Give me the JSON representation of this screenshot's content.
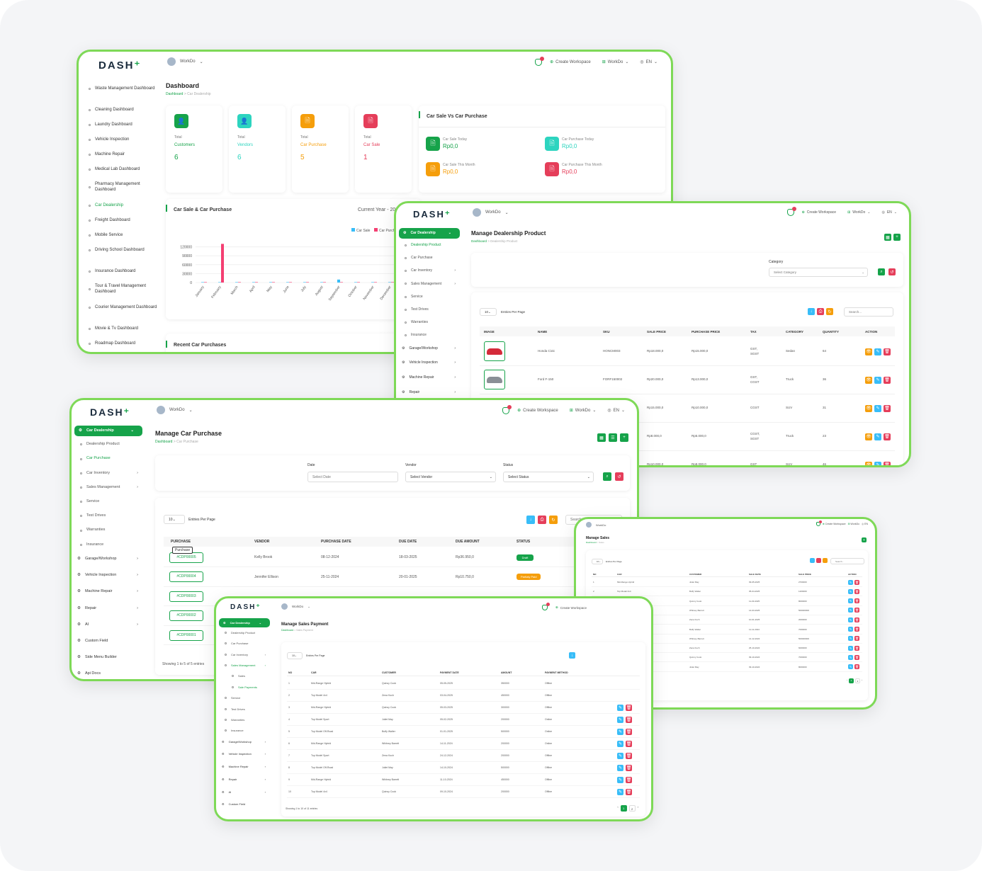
{
  "brand": "DASH",
  "topbar": {
    "workspace": "WorkDo",
    "create_workspace": "Create Workspace",
    "lang": "EN"
  },
  "w1": {
    "sidebar": [
      "Waste Management Dashboard",
      "Cleaning Dashboard",
      "Laundry Dashboard",
      "Vehicle Inspection",
      "Machine Repair",
      "Medical Lab Dashboard",
      "Pharmacy Management Dashboard",
      "Car Dealership",
      "Freight Dashboard",
      "Mobile Service",
      "Driving School Dashboard",
      "Insurance Dashboard",
      "Tour & Travel Management Dashboard",
      "Courier Management Dashboard",
      "Movie & Tv Dashboard",
      "Roadmap Dashboard"
    ],
    "title": "Dashboard",
    "crumb_home": "Dashboard",
    "crumb_current": "Car Dealership",
    "stats": [
      {
        "label": "Total",
        "name": "Customers",
        "value": "6",
        "color": "#16a34a"
      },
      {
        "label": "Total",
        "name": "Vendors",
        "value": "6",
        "color": "#2dd4bf"
      },
      {
        "label": "Total",
        "name": "Car Purchase",
        "value": "5",
        "color": "#f59e0b"
      },
      {
        "label": "Total",
        "name": "Car Sale",
        "value": "1",
        "color": "#e53e5a"
      }
    ],
    "sale_vs_purchase": {
      "title": "Car Sale Vs Car Purchase",
      "items": [
        {
          "label": "Car Sale Today",
          "value": "Rp0,0",
          "color": "#16a34a"
        },
        {
          "label": "Car Purchase Today",
          "value": "Rp0,0",
          "color": "#2dd4bf"
        },
        {
          "label": "Car Sale This Month",
          "value": "Rp0,0",
          "color": "#f59e0b"
        },
        {
          "label": "Car Purchase This Month",
          "value": "Rp0,0",
          "color": "#e53e5a"
        }
      ]
    },
    "chart_title": "Car Sale & Car Purchase",
    "chart_period": "Current Year - 20",
    "recent_title": "Recent Car Purchases"
  },
  "chart_data": {
    "type": "bar",
    "categories": [
      "January",
      "February",
      "March",
      "April",
      "May",
      "June",
      "July",
      "August",
      "September",
      "October",
      "November",
      "December"
    ],
    "series": [
      {
        "name": "Car Sale",
        "values": [
          0,
          0,
          0,
          0,
          0,
          0,
          0,
          0,
          10000,
          0,
          0,
          0
        ],
        "color": "#38bdf8"
      },
      {
        "name": "Car Purchase",
        "values": [
          0,
          130000,
          0,
          0,
          0,
          0,
          0,
          0,
          0,
          0,
          0,
          0
        ],
        "color": "#f43f72"
      }
    ],
    "yticks": [
      "0",
      "30000",
      "60000",
      "90000",
      "120000"
    ],
    "ylim": [
      0,
      150000
    ],
    "legend": "top-right"
  },
  "w2": {
    "sidebar": [
      {
        "label": "Car Dealership",
        "type": "active"
      },
      {
        "label": "Dealership Product",
        "type": "green"
      },
      {
        "label": "Car Purchase",
        "type": "sub"
      },
      {
        "label": "Car Inventory",
        "type": "sub"
      },
      {
        "label": "Sales Management",
        "type": "sub"
      },
      {
        "label": "Service",
        "type": "sub"
      },
      {
        "label": "Test Drives",
        "type": "sub"
      },
      {
        "label": "Warranties",
        "type": "sub"
      },
      {
        "label": "Insurance",
        "type": "sub"
      },
      {
        "label": "Garage/Workshop",
        "type": "main"
      },
      {
        "label": "Vehicle Inspection",
        "type": "main"
      },
      {
        "label": "Machine Repair",
        "type": "main"
      },
      {
        "label": "Repair",
        "type": "main"
      }
    ],
    "title": "Manage Dealership Product",
    "crumb_home": "Dashboard",
    "crumb_current": "Dealership Product",
    "category_label": "Category",
    "category_placeholder": "Select Category",
    "entries": "10",
    "entries_label": "Entries Per Page",
    "search_placeholder": "Search...",
    "headers": [
      "IMAGE",
      "NAME",
      "SKU",
      "SALE PRICE",
      "PURCHASE PRICE",
      "TAX",
      "CATEGORY",
      "QUANTITY",
      "ACTION"
    ],
    "rows": [
      {
        "name": "Honda Civic",
        "sku": "HONCM003",
        "sale": "Rp18.000,0",
        "purchase": "Rp15.000,0",
        "tax": "GST, SGST",
        "category": "Sedan",
        "qty": "64"
      },
      {
        "name": "Ford F-150",
        "sku": "FORF150002",
        "sale": "Rp20.000,0",
        "purchase": "Rp13.000,0",
        "tax": "GST, CGST",
        "category": "Truck",
        "qty": "36"
      },
      {
        "name": "",
        "sku": "",
        "sale": "Rp15.000,0",
        "purchase": "Rp10.000,0",
        "tax": "CGST",
        "category": "SUV",
        "qty": "31"
      },
      {
        "name": "",
        "sku": "",
        "sale": "Rp8.000,0",
        "purchase": "Rp5.000,0",
        "tax": "CGST, SGST",
        "category": "Truck",
        "qty": "23"
      },
      {
        "name": "",
        "sku": "",
        "sale": "Rp10.000,0",
        "purchase": "Rp8.000,0",
        "tax": "GST",
        "category": "SUV",
        "qty": "46"
      }
    ]
  },
  "w3": {
    "sidebar": [
      {
        "label": "Car Dealership",
        "type": "active"
      },
      {
        "label": "Dealership Product",
        "type": "sub"
      },
      {
        "label": "Car Purchase",
        "type": "green"
      },
      {
        "label": "Car Inventory",
        "type": "sub"
      },
      {
        "label": "Sales Management",
        "type": "sub"
      },
      {
        "label": "Service",
        "type": "sub"
      },
      {
        "label": "Test Drives",
        "type": "sub"
      },
      {
        "label": "Warranties",
        "type": "sub"
      },
      {
        "label": "Insurance",
        "type": "sub"
      },
      {
        "label": "Garage/Workshop",
        "type": "main"
      },
      {
        "label": "Vehicle Inspection",
        "type": "main"
      },
      {
        "label": "Machine Repair",
        "type": "main"
      },
      {
        "label": "Repair",
        "type": "main"
      },
      {
        "label": "AI",
        "type": "main"
      },
      {
        "label": "Custom Field",
        "type": "main"
      },
      {
        "label": "Side Menu Builder",
        "type": "main"
      },
      {
        "label": "Api Docs",
        "type": "main"
      }
    ],
    "title": "Manage Car Purchase",
    "crumb_home": "Dashboard",
    "crumb_current": "Car Purchase",
    "filters": {
      "date": "Date",
      "date_ph": "Select Date",
      "vendor": "Vendor",
      "vendor_ph": "Select Vendor",
      "status": "Status",
      "status_ph": "Select Status"
    },
    "entries": "10",
    "entries_label": "Entries Per Page",
    "search_placeholder": "Search...",
    "headers": [
      "PURCHASE",
      "VENDOR",
      "PURCHASE DATE",
      "DUE DATE",
      "DUE AMOUNT",
      "STATUS"
    ],
    "tooltip": "Purchase",
    "rows": [
      {
        "id": "#CDP00005",
        "vendor": "Kelly Brook",
        "pdate": "08-12-2024",
        "due": "18-03-2025",
        "amount": "Rp36.950,0",
        "status": "Draft",
        "scolor": "#16a34a"
      },
      {
        "id": "#CDP00004",
        "vendor": "Jennifer Ellison",
        "pdate": "25-11-2024",
        "due": "20-01-2025",
        "amount": "Rp10.750,0",
        "status": "Partialy Paid",
        "scolor": "#f59e0b"
      },
      {
        "id": "#CDP00003"
      },
      {
        "id": "#CDP00002"
      },
      {
        "id": "#CDP00001"
      }
    ],
    "showing": "Showing 1 to 5 of 5 entries"
  },
  "w4": {
    "title": "Manage Sales Payment",
    "crumb_home": "Dashboard",
    "crumb_current": "Sales Payment",
    "sidebar": [
      {
        "label": "Car Dealership",
        "type": "active"
      },
      {
        "label": "Dealership Product",
        "type": "sub"
      },
      {
        "label": "Car Purchase",
        "type": "sub"
      },
      {
        "label": "Car Inventory",
        "type": "sub"
      },
      {
        "label": "Sales Management",
        "type": "green"
      },
      {
        "label": "Sales",
        "type": "sub2"
      },
      {
        "label": "Sale Payments",
        "type": "green2"
      },
      {
        "label": "Service",
        "type": "sub"
      },
      {
        "label": "Test Drives",
        "type": "sub"
      },
      {
        "label": "Warranties",
        "type": "sub"
      },
      {
        "label": "Insurance",
        "type": "sub"
      },
      {
        "label": "Garage/Workshop",
        "type": "main"
      },
      {
        "label": "Vehicle Inspection",
        "type": "main"
      },
      {
        "label": "Machine Repair",
        "type": "main"
      },
      {
        "label": "Repair",
        "type": "main"
      },
      {
        "label": "AI",
        "type": "main"
      },
      {
        "label": "Custom Field",
        "type": "main"
      }
    ],
    "entries": "10",
    "entries_label": "Entries Per Page",
    "headers": [
      "NO",
      "CAR",
      "CUSTOMER",
      "PAYMENT DATE",
      "AMOUNT",
      "PAYMENT METHOD"
    ],
    "rows": [
      [
        "1",
        "Mid-Range Hybrid",
        "Quincy Cook",
        "05-05-2025",
        "350000",
        "Offline"
      ],
      [
        "2",
        "Top Model 4x4",
        "Zena Koch",
        "03-04-2025",
        "450000",
        "Offline"
      ],
      [
        "3",
        "Mid-Range Hybrid",
        "Quincy Cook",
        "05-03-2025",
        "300000",
        "Offline"
      ],
      [
        "4",
        "Top Model Sport",
        "Juliet May",
        "05-02-2025",
        "200000",
        "Online"
      ],
      [
        "5",
        "Top Model Off-Road",
        "Buffy Walter",
        "01-01-2025",
        "500000",
        "Online"
      ],
      [
        "6",
        "Mid-Range Hybrid",
        "Whitney Barrett",
        "14-11-2024",
        "200000",
        "Online"
      ],
      [
        "7",
        "Top Model Sport",
        "Zena Koch",
        "24-12-2024",
        "200000",
        "Offline"
      ],
      [
        "8",
        "Top Model Off-Road",
        "Juliet May",
        "14-10-2024",
        "500000",
        "Offline"
      ],
      [
        "9",
        "Mid-Range Hybrid",
        "Whitney Barrett",
        "11-10-2024",
        "450000",
        "Offline"
      ],
      [
        "10",
        "Top Model 4x4",
        "Quincy Cook",
        "09-10-2024",
        "200000",
        "Offline"
      ]
    ],
    "showing": "Showing 1 to 10 of 11 entries",
    "pages": [
      "1",
      "2"
    ]
  },
  "w5": {
    "title": "Manage Sales",
    "crumb_home": "Dashboard",
    "crumb_current": "Sales",
    "entries": "10",
    "entries_label": "Entries Per Page",
    "search_placeholder": "Search...",
    "headers": [
      "NO",
      "CAR",
      "CUSTOMER",
      "SALE DATE",
      "SALE PRICE",
      "ACTION"
    ],
    "rows": [
      [
        "1",
        "Mid-Range Hybrid",
        "Juliet May",
        "09-05-2025",
        "2700000"
      ],
      [
        "2",
        "Top Model 4x4",
        "Buffy Walter",
        "05-04-2025",
        "1200000"
      ],
      [
        "3",
        "Top Model Off-Road",
        "Quincy Cook",
        "11-03-2025",
        "8000000"
      ],
      [
        "4",
        "Base Model Diesel",
        "Whitney Barrett",
        "14-03-2025",
        "500000000"
      ],
      [
        "5",
        "Mid-Range Hybrid",
        "Zena Koch",
        "10-01-2025",
        "2000000"
      ],
      [
        "6",
        "Top Model 4x4",
        "Buffy Walter",
        "11-11-2024",
        "7000000"
      ],
      [
        "7",
        "Base Model Diesel",
        "Whitney Barrett",
        "14-12-2024",
        "500000000"
      ],
      [
        "8",
        "Top Model Sport",
        "Zena Koch",
        "25-10-2024",
        "6000000"
      ],
      [
        "9",
        "Top Model 4x4",
        "Quincy Cook",
        "09-10-2024",
        "7000000"
      ],
      [
        "10",
        "Top Model Off-Road",
        "Juliet May",
        "09-10-2024",
        "8000000"
      ]
    ],
    "showing": "Showing 1 to 10 of 11 entries",
    "pages": [
      "1",
      "2"
    ]
  }
}
